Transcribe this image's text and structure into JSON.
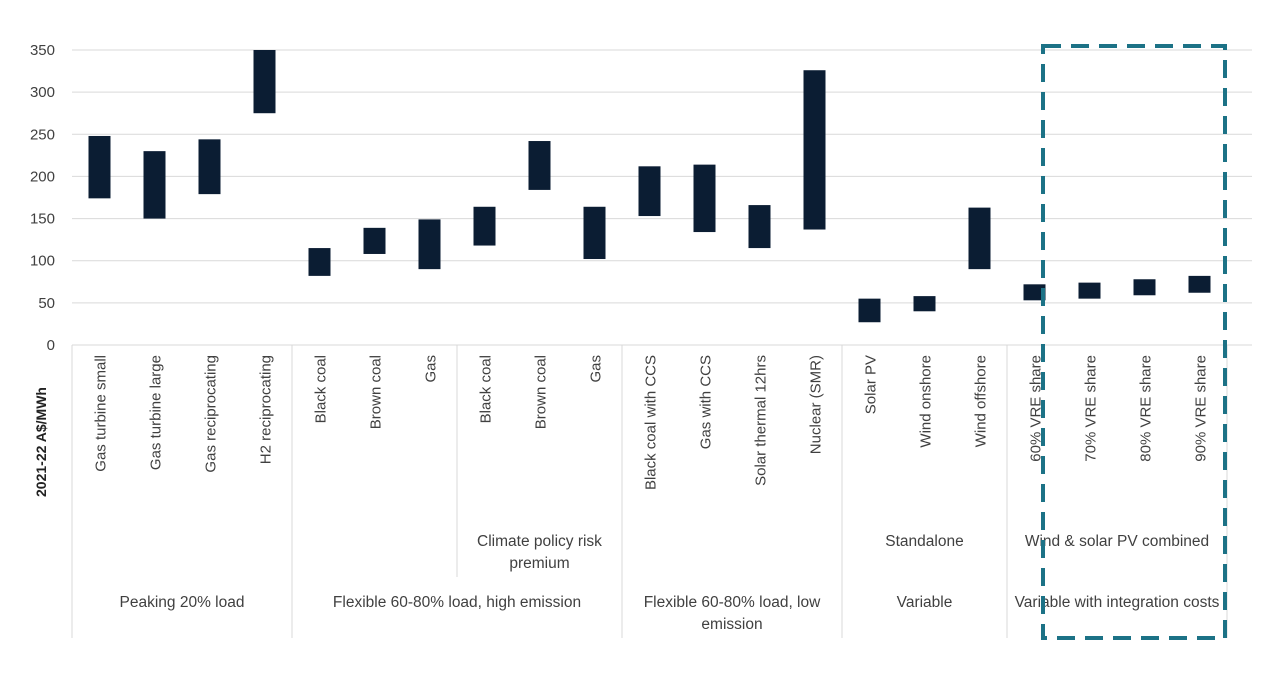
{
  "chart_data": {
    "type": "bar",
    "subtype": "floating-range",
    "ylabel": "2021-22 A$/MWh",
    "ylim": [
      0,
      350
    ],
    "yticks": [
      0,
      50,
      100,
      150,
      200,
      250,
      300,
      350
    ],
    "bar_color": "#0b1d33",
    "highlight_color": "#1c7286",
    "categories": [
      {
        "label": "Gas turbine small",
        "low": 174,
        "high": 248
      },
      {
        "label": "Gas turbine large",
        "low": 150,
        "high": 230
      },
      {
        "label": "Gas reciprocating",
        "low": 179,
        "high": 244
      },
      {
        "label": "H2 reciprocating",
        "low": 275,
        "high": 350
      },
      {
        "label": "Black coal",
        "low": 82,
        "high": 115
      },
      {
        "label": "Brown coal",
        "low": 108,
        "high": 139
      },
      {
        "label": "Gas",
        "low": 90,
        "high": 149
      },
      {
        "label": "Black coal",
        "low": 118,
        "high": 164
      },
      {
        "label": "Brown coal",
        "low": 184,
        "high": 242
      },
      {
        "label": "Gas",
        "low": 102,
        "high": 164
      },
      {
        "label": "Black coal with CCS",
        "low": 153,
        "high": 212
      },
      {
        "label": "Gas with CCS",
        "low": 134,
        "high": 214
      },
      {
        "label": "Solar thermal 12hrs",
        "low": 115,
        "high": 166
      },
      {
        "label": "Nuclear (SMR)",
        "low": 137,
        "high": 326
      },
      {
        "label": "Solar PV",
        "low": 27,
        "high": 55
      },
      {
        "label": "Wind onshore",
        "low": 40,
        "high": 58
      },
      {
        "label": "Wind offshore",
        "low": 90,
        "high": 163
      },
      {
        "label": "60% VRE share",
        "low": 53,
        "high": 72
      },
      {
        "label": "70% VRE share",
        "low": 55,
        "high": 74
      },
      {
        "label": "80% VRE share",
        "low": 59,
        "high": 78
      },
      {
        "label": "90% VRE share",
        "low": 62,
        "high": 82
      }
    ],
    "subgroups": [
      {
        "label": "Climate policy risk premium",
        "start": 7,
        "end": 9
      },
      {
        "label": "Standalone",
        "start": 14,
        "end": 16
      },
      {
        "label": "Wind & solar PV combined",
        "start": 17,
        "end": 20
      }
    ],
    "groups": [
      {
        "label": "Peaking 20% load",
        "start": 0,
        "end": 3
      },
      {
        "label": "Flexible 60-80% load, high emission",
        "start": 4,
        "end": 9
      },
      {
        "label": "Flexible 60-80% load, low emission",
        "start": 10,
        "end": 13
      },
      {
        "label": "Variable",
        "start": 14,
        "end": 16
      },
      {
        "label": "Variable with integration costs",
        "start": 17,
        "end": 20
      }
    ],
    "highlight": {
      "start": 17,
      "end": 20
    }
  }
}
